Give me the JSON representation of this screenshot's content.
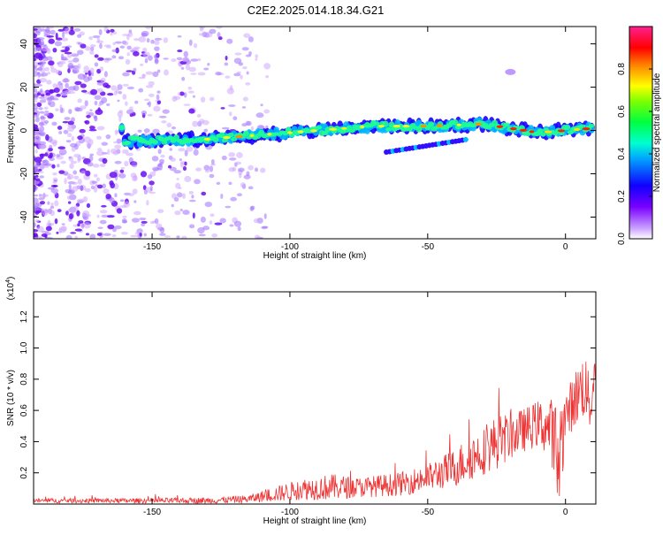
{
  "title": "C2E2.2025.014.18.34.G21",
  "chart_data": [
    {
      "type": "heatmap",
      "name": "spectrogram",
      "xlabel": "Height of straight line (km)",
      "ylabel": "Frequency (Hz)",
      "xlim": [
        -193,
        11
      ],
      "ylim": [
        -50,
        48
      ],
      "xticks": [
        -150,
        -100,
        -50,
        0
      ],
      "yticks": [
        -40,
        -20,
        0,
        20,
        40
      ],
      "xtick_labels": [
        "-150",
        "-100",
        "-50",
        "0"
      ],
      "ytick_labels": [
        "-40",
        "-20",
        "0",
        "20",
        "40"
      ],
      "band": {
        "description_points": [
          [
            -160,
            -5
          ],
          [
            -130,
            -4
          ],
          [
            -110,
            -2
          ],
          [
            -90,
            0
          ],
          [
            -70,
            2
          ],
          [
            -50,
            2
          ],
          [
            -30,
            3
          ],
          [
            -10,
            -1
          ],
          [
            0,
            0
          ],
          [
            10,
            1
          ]
        ],
        "secondary": [
          [
            -65,
            -10
          ],
          [
            -35,
            -4
          ]
        ],
        "blob": [
          [
            -20,
            27
          ]
        ]
      },
      "colorbar": {
        "label": "Normalized spectral amplitude",
        "range": [
          0.0,
          1.0
        ],
        "ticks": [
          0.0,
          0.2,
          0.4,
          0.6,
          0.8
        ],
        "tick_labels": [
          "0.0",
          "0.2",
          "0.4",
          "0.6",
          "0.8"
        ],
        "colors": [
          "#ffffff",
          "#d8b0ff",
          "#6a00ff",
          "#1000ff",
          "#00c8ff",
          "#00ff80",
          "#60ff00",
          "#ffff00",
          "#ff8000",
          "#ff0000",
          "#ff2080"
        ]
      }
    },
    {
      "type": "line",
      "name": "snr",
      "xlabel": "Height of straight line (km)",
      "ylabel": "SNR (10 * v/v)",
      "ylabel_multiplier": "(x10",
      "ylabel_multiplier_exp": "4",
      "ylabel_multiplier_close": ")",
      "xlim": [
        -193,
        11
      ],
      "ylim": [
        0,
        1.36
      ],
      "xticks": [
        -150,
        -100,
        -50,
        0
      ],
      "yticks": [
        0.2,
        0.4,
        0.6,
        0.8,
        1.0,
        1.2
      ],
      "xtick_labels": [
        "-150",
        "-100",
        "-50",
        "0"
      ],
      "ytick_labels": [
        "0.2",
        "0.4",
        "0.6",
        "0.8",
        "1.0",
        "1.2"
      ],
      "line_color": "#ee3333",
      "envelope": {
        "x": [
          -193,
          -160,
          -130,
          -115,
          -105,
          -95,
          -85,
          -75,
          -60,
          -50,
          -40,
          -35,
          -30,
          -25,
          -20,
          -15,
          -10,
          -5,
          -3,
          0,
          5,
          7,
          9,
          11
        ],
        "base": [
          0.02,
          0.02,
          0.02,
          0.03,
          0.06,
          0.09,
          0.1,
          0.1,
          0.12,
          0.16,
          0.22,
          0.28,
          0.32,
          0.38,
          0.42,
          0.46,
          0.5,
          0.46,
          0.2,
          0.55,
          0.7,
          0.75,
          0.6,
          0.9
        ],
        "amp": [
          0.03,
          0.03,
          0.04,
          0.05,
          0.1,
          0.14,
          0.17,
          0.13,
          0.15,
          0.18,
          0.25,
          0.3,
          0.3,
          0.35,
          0.3,
          0.28,
          0.3,
          0.4,
          0.9,
          0.3,
          0.4,
          0.45,
          0.3,
          0.25
        ]
      }
    }
  ]
}
